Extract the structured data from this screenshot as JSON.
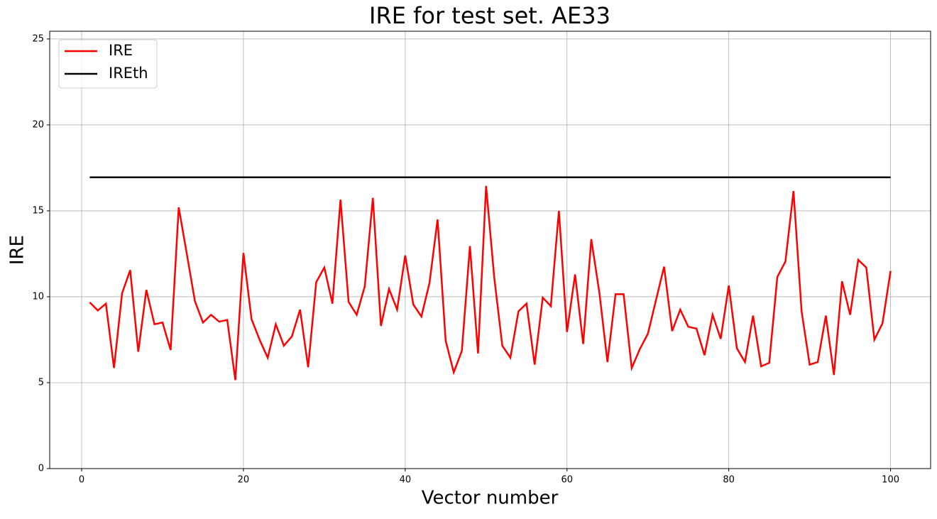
{
  "chart_data": {
    "type": "line",
    "title": "IRE for test set. AE33",
    "x_label": "Vector number",
    "y_label": "IRE",
    "x": [
      1,
      2,
      3,
      4,
      5,
      6,
      7,
      8,
      9,
      10,
      11,
      12,
      13,
      14,
      15,
      16,
      17,
      18,
      19,
      20,
      21,
      22,
      23,
      24,
      25,
      26,
      27,
      28,
      29,
      30,
      31,
      32,
      33,
      34,
      35,
      36,
      37,
      38,
      39,
      40,
      41,
      42,
      43,
      44,
      45,
      46,
      47,
      48,
      49,
      50,
      51,
      52,
      53,
      54,
      55,
      56,
      57,
      58,
      59,
      60,
      61,
      62,
      63,
      64,
      65,
      66,
      67,
      68,
      69,
      70,
      71,
      72,
      73,
      74,
      75,
      76,
      77,
      78,
      79,
      80,
      81,
      82,
      83,
      84,
      85,
      86,
      87,
      88,
      89,
      90,
      91,
      92,
      93,
      94,
      95,
      96,
      97,
      98,
      99,
      100
    ],
    "series": [
      {
        "name": "IRE",
        "color": "#ff0000",
        "values": [
          9.67,
          9.2,
          9.6,
          5.85,
          10.2,
          11.55,
          6.8,
          10.4,
          8.4,
          8.5,
          6.9,
          15.2,
          12.5,
          9.75,
          8.5,
          8.95,
          8.55,
          8.65,
          5.15,
          12.55,
          8.7,
          7.5,
          6.45,
          8.4,
          7.15,
          7.7,
          9.25,
          5.9,
          10.85,
          11.7,
          9.6,
          15.65,
          9.7,
          8.95,
          10.6,
          15.75,
          8.3,
          10.45,
          9.25,
          12.4,
          9.55,
          8.85,
          10.8,
          14.5,
          7.45,
          5.6,
          6.85,
          12.95,
          6.7,
          16.45,
          11.15,
          7.15,
          6.45,
          9.15,
          9.6,
          6.05,
          9.95,
          9.45,
          15.0,
          7.95,
          11.3,
          7.25,
          13.35,
          10.25,
          6.2,
          10.15,
          10.15,
          5.85,
          6.95,
          7.85,
          9.8,
          11.75,
          8.0,
          9.25,
          8.25,
          8.15,
          6.6,
          8.95,
          7.55,
          10.65,
          7.0,
          6.2,
          8.9,
          5.95,
          6.15,
          11.15,
          12.05,
          16.15,
          9.15,
          6.05,
          6.2,
          8.9,
          5.45,
          10.9,
          8.95,
          12.15,
          11.7,
          7.5,
          8.45,
          11.5
        ]
      },
      {
        "name": "IREth",
        "color": "#000000",
        "values": [
          16.95,
          16.95,
          16.95,
          16.95,
          16.95,
          16.95,
          16.95,
          16.95,
          16.95,
          16.95,
          16.95,
          16.95,
          16.95,
          16.95,
          16.95,
          16.95,
          16.95,
          16.95,
          16.95,
          16.95,
          16.95,
          16.95,
          16.95,
          16.95,
          16.95,
          16.95,
          16.95,
          16.95,
          16.95,
          16.95,
          16.95,
          16.95,
          16.95,
          16.95,
          16.95,
          16.95,
          16.95,
          16.95,
          16.95,
          16.95,
          16.95,
          16.95,
          16.95,
          16.95,
          16.95,
          16.95,
          16.95,
          16.95,
          16.95,
          16.95,
          16.95,
          16.95,
          16.95,
          16.95,
          16.95,
          16.95,
          16.95,
          16.95,
          16.95,
          16.95,
          16.95,
          16.95,
          16.95,
          16.95,
          16.95,
          16.95,
          16.95,
          16.95,
          16.95,
          16.95,
          16.95,
          16.95,
          16.95,
          16.95,
          16.95,
          16.95,
          16.95,
          16.95,
          16.95,
          16.95,
          16.95,
          16.95,
          16.95,
          16.95,
          16.95,
          16.95,
          16.95,
          16.95,
          16.95,
          16.95,
          16.95,
          16.95,
          16.95,
          16.95,
          16.95,
          16.95,
          16.95,
          16.95,
          16.95,
          16.95
        ]
      }
    ],
    "xlim": [
      -3.95,
      104.95
    ],
    "xticks": [
      0,
      20,
      40,
      60,
      80,
      100
    ],
    "ylim": [
      0,
      25.45
    ],
    "yticks": [
      0,
      5,
      10,
      15,
      20,
      25
    ],
    "grid": true,
    "legend": "upper-left"
  }
}
